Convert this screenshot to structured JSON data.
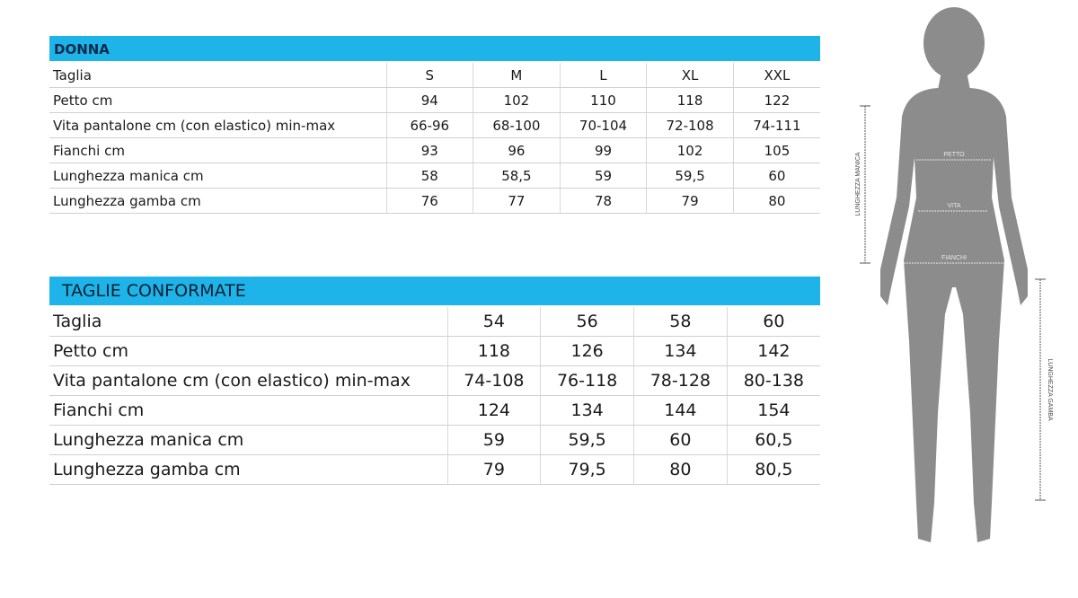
{
  "donna": {
    "title": "DONNA",
    "rows": [
      {
        "label": "Taglia",
        "values": [
          "S",
          "M",
          "L",
          "XL",
          "XXL"
        ]
      },
      {
        "label": "Petto cm",
        "values": [
          "94",
          "102",
          "110",
          "118",
          "122"
        ]
      },
      {
        "label": "Vita pantalone cm (con elastico) min-max",
        "values": [
          "66-96",
          "68-100",
          "70-104",
          "72-108",
          "74-111"
        ]
      },
      {
        "label": "Fianchi cm",
        "values": [
          "93",
          "96",
          "99",
          "102",
          "105"
        ]
      },
      {
        "label": "Lunghezza manica cm",
        "values": [
          "58",
          "58,5",
          "59",
          "59,5",
          "60"
        ]
      },
      {
        "label": "Lunghezza gamba cm",
        "values": [
          "76",
          "77",
          "78",
          "79",
          "80"
        ]
      }
    ]
  },
  "conformate": {
    "title": "TAGLIE CONFORMATE",
    "rows": [
      {
        "label": "Taglia",
        "values": [
          "54",
          "56",
          "58",
          "60"
        ]
      },
      {
        "label": "Petto cm",
        "values": [
          "118",
          "126",
          "134",
          "142"
        ]
      },
      {
        "label": "Vita pantalone cm (con elastico) min-max",
        "values": [
          "74-108",
          "76-118",
          "78-128",
          "80-138"
        ]
      },
      {
        "label": "Fianchi cm",
        "values": [
          "124",
          "134",
          "144",
          "154"
        ]
      },
      {
        "label": "Lunghezza manica cm",
        "values": [
          "59",
          "59,5",
          "60",
          "60,5"
        ]
      },
      {
        "label": "Lunghezza gamba cm",
        "values": [
          "79",
          "79,5",
          "80",
          "80,5"
        ]
      }
    ]
  },
  "figure": {
    "petto": "PETTO",
    "vita": "VITA",
    "fianchi": "FIANCHI",
    "manica": "LUNGHEZZA MANICA",
    "gamba": "LUNGHEZZA GAMBA"
  },
  "colors": {
    "header_bar": "#1eb4ea",
    "silhouette": "#8c8c8c"
  }
}
